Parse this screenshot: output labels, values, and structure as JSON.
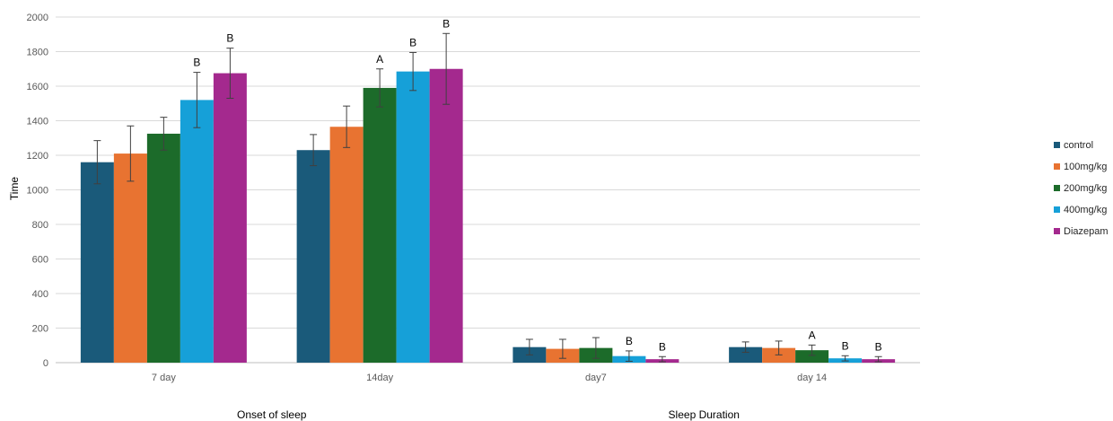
{
  "chart_data": {
    "type": "bar",
    "ylabel": "Time",
    "ylim": [
      0,
      2000
    ],
    "yticks": [
      0,
      200,
      400,
      600,
      800,
      1000,
      1200,
      1400,
      1600,
      1800,
      2000
    ],
    "grid": true,
    "legend_position": "right",
    "categories": [
      "7 day",
      "14day",
      "day7",
      "day 14"
    ],
    "group_titles": [
      "Onset of sleep",
      "Sleep Duration"
    ],
    "series": [
      {
        "name": "control",
        "color": "#1a5a7a",
        "values": [
          1160,
          1230,
          90,
          90
        ],
        "errors": [
          125,
          90,
          45,
          30
        ],
        "labels": [
          "",
          "",
          "",
          ""
        ]
      },
      {
        "name": "100mg/kg",
        "color": "#e87331",
        "values": [
          1210,
          1365,
          80,
          85
        ],
        "errors": [
          160,
          120,
          55,
          40
        ],
        "labels": [
          "",
          "",
          "",
          ""
        ]
      },
      {
        "name": "200mg/kg",
        "color": "#1c6b2a",
        "values": [
          1325,
          1590,
          85,
          72
        ],
        "errors": [
          95,
          110,
          60,
          30
        ],
        "labels": [
          "",
          "A",
          "",
          "A"
        ]
      },
      {
        "name": "400mg/kg",
        "color": "#16a0d8",
        "values": [
          1520,
          1685,
          38,
          25
        ],
        "errors": [
          160,
          110,
          30,
          15
        ],
        "labels": [
          "B",
          "B",
          "B",
          "B"
        ]
      },
      {
        "name": "Diazepam",
        "color": "#a4298e",
        "values": [
          1675,
          1700,
          20,
          20
        ],
        "errors": [
          145,
          205,
          15,
          15
        ],
        "labels": [
          "B",
          "B",
          "B",
          "B"
        ]
      }
    ]
  }
}
